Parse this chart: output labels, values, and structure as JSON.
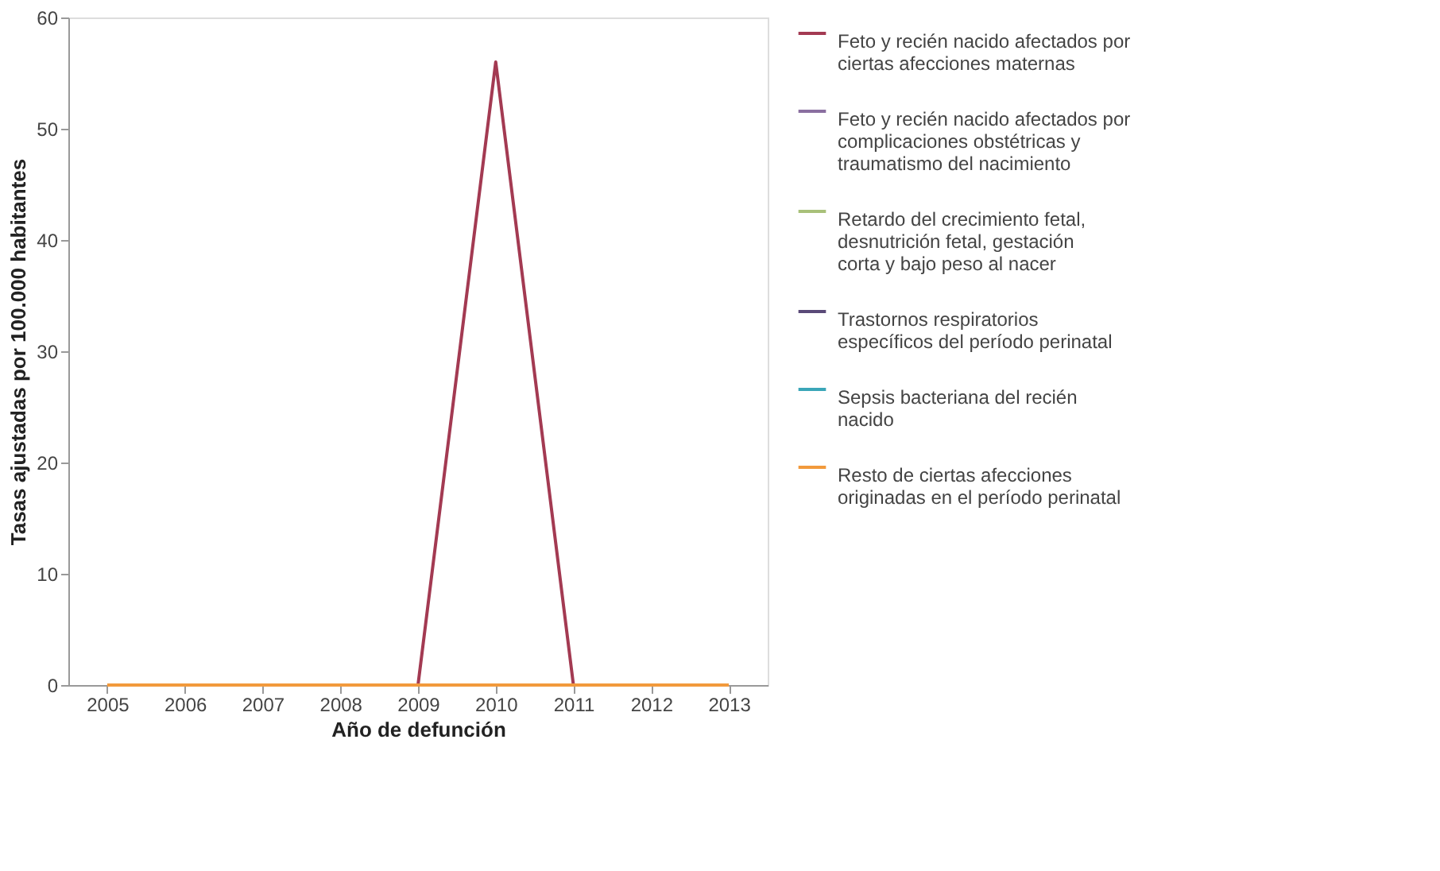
{
  "chart_data": {
    "type": "line",
    "xlabel": "Año de defunción",
    "ylabel": "Tasas ajustadas por 100.000 habitantes",
    "categories": [
      "2005",
      "2006",
      "2007",
      "2008",
      "2009",
      "2010",
      "2011",
      "2012",
      "2013"
    ],
    "series": [
      {
        "name": "Feto y recién nacido afectados por ciertas afecciones maternas",
        "color": "#a33a52",
        "values": [
          null,
          null,
          null,
          null,
          0,
          56,
          0,
          null,
          null
        ]
      },
      {
        "name": "Feto y recién nacido afectados por complicaciones obstétricas y traumatismo del nacimiento",
        "color": "#8a6fa0",
        "values": [
          null,
          null,
          null,
          null,
          null,
          null,
          null,
          null,
          null
        ]
      },
      {
        "name": "Retardo del crecimiento fetal, desnutrición fetal, gestación corta y bajo peso al nacer",
        "color": "#a8c07a",
        "values": [
          null,
          null,
          null,
          null,
          null,
          null,
          null,
          null,
          null
        ]
      },
      {
        "name": "Trastornos respiratorios específicos del período perinatal",
        "color": "#5a4a78",
        "values": [
          null,
          null,
          null,
          null,
          null,
          null,
          null,
          null,
          null
        ]
      },
      {
        "name": "Sepsis bacteriana del recién nacido",
        "color": "#3aa6b8",
        "values": [
          null,
          null,
          null,
          null,
          null,
          null,
          null,
          null,
          null
        ]
      },
      {
        "name": "Resto de ciertas afecciones originadas en el período perinatal",
        "color": "#f29a3c",
        "values": [
          0,
          0,
          0,
          0,
          0,
          0,
          0,
          0,
          0
        ]
      }
    ],
    "ylim": [
      0,
      60
    ],
    "yticks": [
      0,
      10,
      20,
      30,
      40,
      50,
      60
    ],
    "grid": false,
    "legend": "right",
    "marker": "none",
    "line_style": "solid"
  }
}
